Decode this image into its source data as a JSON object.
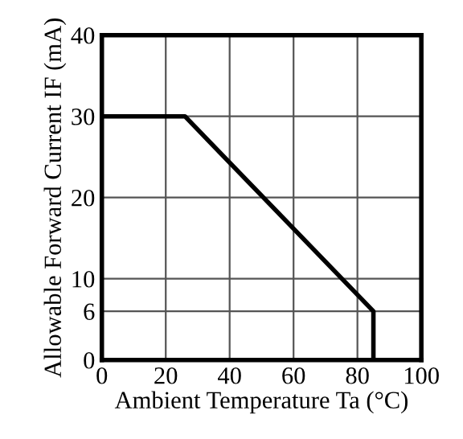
{
  "chart_data": {
    "type": "line",
    "xlabel": "Ambient Temperature Ta (°C)",
    "ylabel": "Allowable Forward Current IF (mA)",
    "x": [
      0,
      26,
      85,
      85
    ],
    "series": [
      {
        "color": "#000000",
        "values": [
          30,
          30,
          6,
          0
        ]
      }
    ],
    "xlim": [
      0,
      100
    ],
    "xticks": [
      0,
      20,
      40,
      60,
      80,
      100
    ],
    "ylim": [
      0,
      40
    ],
    "yticks": [
      0,
      6,
      10,
      20,
      30,
      40
    ],
    "grid": true,
    "marker": "none",
    "line_style": "solid"
  }
}
